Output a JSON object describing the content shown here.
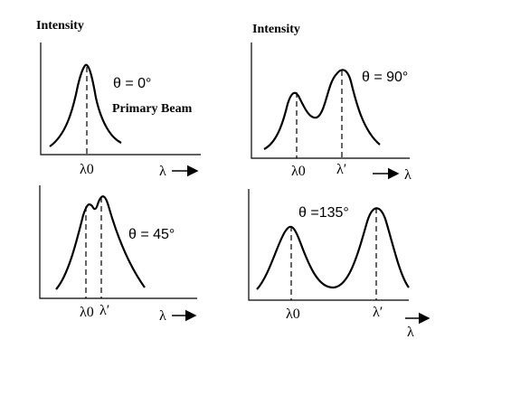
{
  "panels": [
    {
      "id": "p1",
      "ylabel": "Intensity",
      "angle": "θ = 0°",
      "note": "Primary Beam",
      "ticks": [
        "λ0"
      ],
      "xlabel": "λ"
    },
    {
      "id": "p2",
      "ylabel": "Intensity",
      "angle": "θ = 90°",
      "ticks": [
        "λ0",
        "λ′"
      ],
      "xlabel": "λ"
    },
    {
      "id": "p3",
      "angle": "θ = 45°",
      "ticks": [
        "λ0",
        "λ′"
      ],
      "xlabel": "λ"
    },
    {
      "id": "p4",
      "angle": "θ =135°",
      "ticks": [
        "λ0",
        "λ′"
      ],
      "xlabel": "λ"
    }
  ]
}
